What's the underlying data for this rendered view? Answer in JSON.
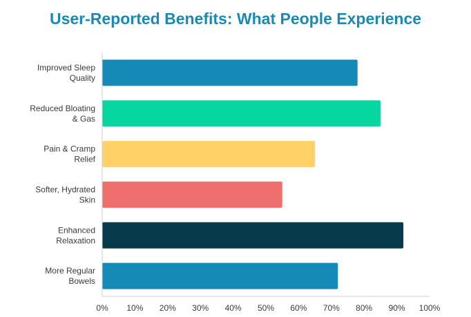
{
  "chart_data": {
    "type": "bar",
    "orientation": "horizontal",
    "title": "User-Reported Benefits: What People Experience",
    "xlabel": "",
    "ylabel": "",
    "categories": [
      [
        "Improved Sleep",
        "Quality"
      ],
      [
        "Reduced Bloating",
        "& Gas"
      ],
      [
        "Pain & Cramp",
        "Relief"
      ],
      [
        "Softer, Hydrated",
        "Skin"
      ],
      [
        "Enhanced",
        "Relaxation"
      ],
      [
        "More Regular",
        "Bowels"
      ]
    ],
    "values": [
      78,
      85,
      65,
      55,
      92,
      72
    ],
    "bar_colors": [
      "#168ab6",
      "#06d6a0",
      "#ffd166",
      "#ef6f6c",
      "#073b4c",
      "#168ab6"
    ],
    "xlim": [
      0,
      100
    ],
    "ticks": [
      0,
      10,
      20,
      30,
      40,
      50,
      60,
      70,
      80,
      90,
      100
    ],
    "tick_labels": [
      "0%",
      "10%",
      "20%",
      "30%",
      "40%",
      "50%",
      "60%",
      "70%",
      "80%",
      "90%",
      "100%"
    ],
    "grid": false,
    "legend": "none"
  },
  "colors": {
    "title": "#1a8ab3",
    "axis": "#cfcfcf",
    "text": "#3a3a3a"
  }
}
